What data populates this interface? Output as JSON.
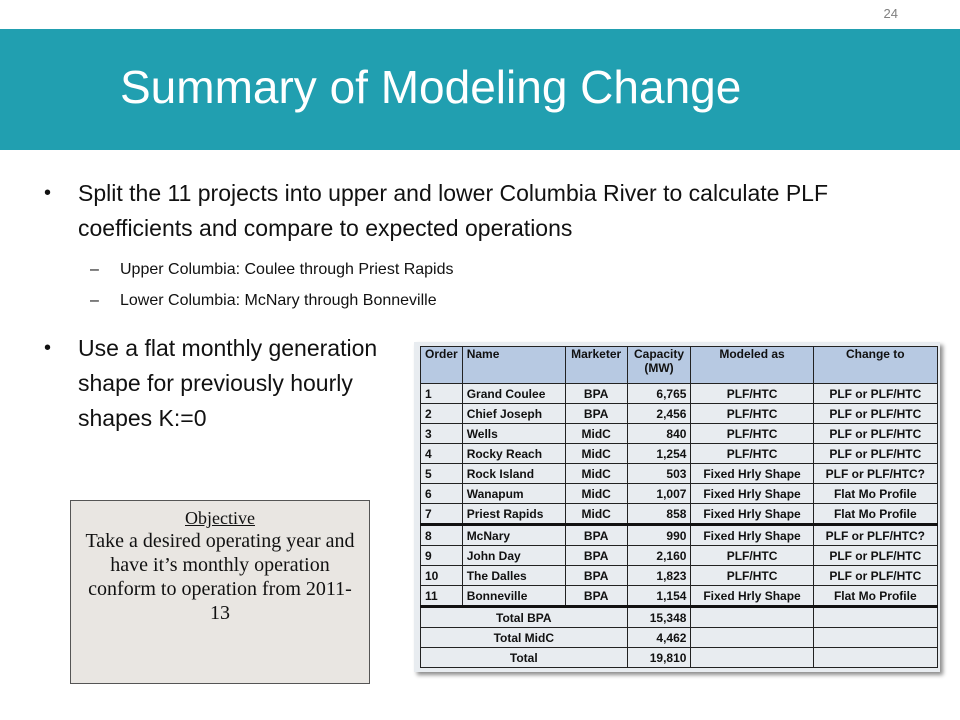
{
  "slide": {
    "number": "24",
    "title": "Summary of Modeling Change"
  },
  "bullets": {
    "b1": "Split the 11 projects into upper and lower Columbia River to calculate PLF coefficients and compare to expected operations",
    "sub1": "Upper Columbia: Coulee through Priest Rapids",
    "sub2": "Lower Columbia: McNary through Bonneville",
    "b2": "Use a flat monthly generation shape for previously hourly shapes K:=0",
    "bullet_glyph": "•",
    "dash_glyph": "–"
  },
  "objective": {
    "heading": "Objective",
    "body": "Take a desired operating year and have it’s monthly operation conform to operation from 2011-13"
  },
  "table": {
    "headers": [
      "Order",
      "Name",
      "Marketer",
      "Capacity (MW)",
      "Modeled as",
      "Change to"
    ],
    "rows": [
      [
        "1",
        "Grand Coulee",
        "BPA",
        "6,765",
        "PLF/HTC",
        "PLF or PLF/HTC"
      ],
      [
        "2",
        "Chief Joseph",
        "BPA",
        "2,456",
        "PLF/HTC",
        "PLF or PLF/HTC"
      ],
      [
        "3",
        "Wells",
        "MidC",
        "840",
        "PLF/HTC",
        "PLF or PLF/HTC"
      ],
      [
        "4",
        "Rocky Reach",
        "MidC",
        "1,254",
        "PLF/HTC",
        "PLF or PLF/HTC"
      ],
      [
        "5",
        "Rock Island",
        "MidC",
        "503",
        "Fixed Hrly Shape",
        "PLF or PLF/HTC?"
      ],
      [
        "6",
        "Wanapum",
        "MidC",
        "1,007",
        "Fixed Hrly Shape",
        "Flat Mo Profile"
      ],
      [
        "7",
        "Priest Rapids",
        "MidC",
        "858",
        "Fixed Hrly Shape",
        "Flat Mo Profile"
      ],
      [
        "8",
        "McNary",
        "BPA",
        "990",
        "Fixed Hrly Shape",
        "PLF or PLF/HTC?"
      ],
      [
        "9",
        "John Day",
        "BPA",
        "2,160",
        "PLF/HTC",
        "PLF or PLF/HTC"
      ],
      [
        "10",
        "The Dalles",
        "BPA",
        "1,823",
        "PLF/HTC",
        "PLF or PLF/HTC"
      ],
      [
        "11",
        "Bonneville",
        "BPA",
        "1,154",
        "Fixed Hrly Shape",
        "Flat Mo Profile"
      ]
    ],
    "totals": [
      [
        "Total BPA",
        "15,348"
      ],
      [
        "Total MidC",
        "4,462"
      ],
      [
        "Total",
        "19,810"
      ]
    ]
  },
  "colors": {
    "title_bar": "#219fb0",
    "table_header": "#b7c9e2",
    "objective_bg": "#e9e6e2"
  }
}
